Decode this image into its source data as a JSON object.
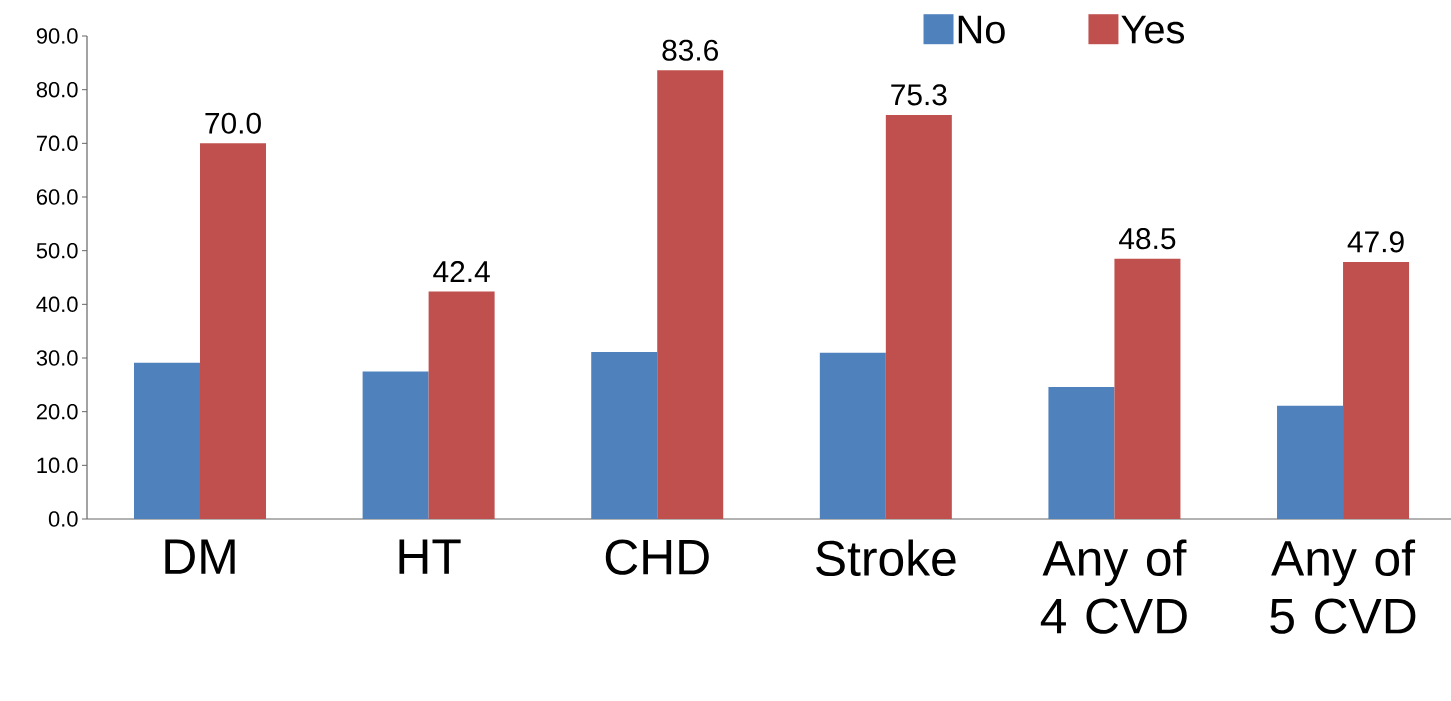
{
  "chart_data": {
    "type": "bar",
    "categories": [
      "DM",
      "HT",
      "CHD",
      "Stroke",
      "Any of 4 CVD",
      "Any of 5 CVD"
    ],
    "series": [
      {
        "name": "No",
        "color": "#4f81bd",
        "values": [
          29.1,
          27.5,
          31.1,
          31.0,
          24.6,
          21.1
        ]
      },
      {
        "name": "Yes",
        "color": "#c0504d",
        "values": [
          70.0,
          42.4,
          83.6,
          75.3,
          48.5,
          47.9
        ],
        "value_labels": [
          "70.0",
          "42.4",
          "83.6",
          "75.3",
          "48.5",
          "47.9"
        ]
      }
    ],
    "ylim": [
      0,
      90
    ],
    "yticks": [
      {
        "value": 0,
        "label": "0.0"
      },
      {
        "value": 10,
        "label": "10.0"
      },
      {
        "value": 20,
        "label": "20.0"
      },
      {
        "value": 30,
        "label": "30.0"
      },
      {
        "value": 40,
        "label": "40.0"
      },
      {
        "value": 50,
        "label": "50.0"
      },
      {
        "value": 60,
        "label": "60.0"
      },
      {
        "value": 70,
        "label": "70.0"
      },
      {
        "value": 80,
        "label": "80.0"
      },
      {
        "value": 90,
        "label": "90.0"
      }
    ],
    "grid": false,
    "legend": "top"
  }
}
